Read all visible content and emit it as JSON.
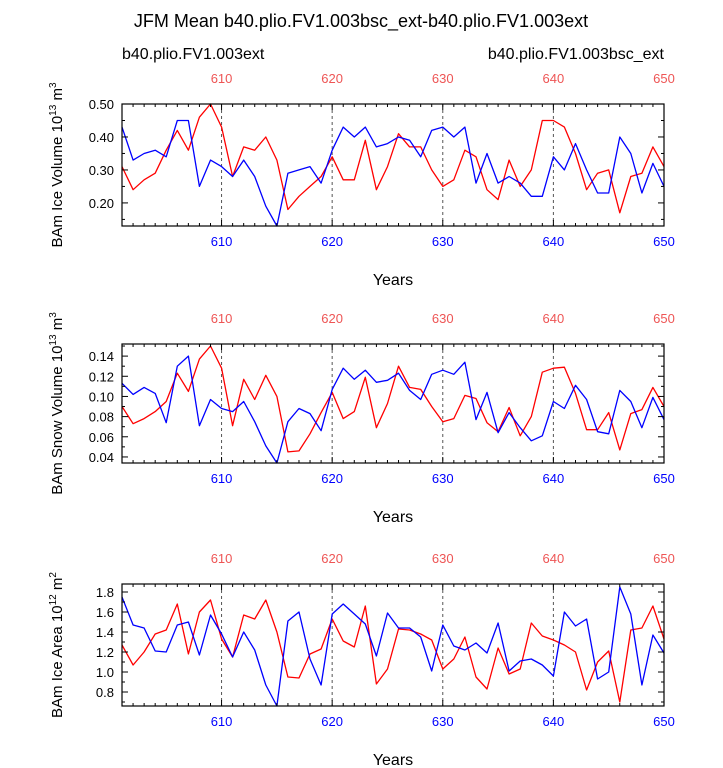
{
  "title": "JFM Mean b40.plio.FV1.003bsc_ext-b40.plio.FV1.003ext",
  "legend": {
    "red_label": "b40.plio.FV1.003ext",
    "blue_label": "b40.plio.FV1.003bsc_ext"
  },
  "colors": {
    "red": "#ff0000",
    "blue": "#0000ff",
    "top_tick": "#ee5555",
    "grid": "#555555"
  },
  "chart_data": [
    {
      "type": "line",
      "ylabel": "BAm Ice Volume 10",
      "ylabel_exp": "13",
      "ylabel_unit": " m",
      "ylabel_unit_exp": "3",
      "xlabel": "Years",
      "xlim": [
        601,
        650
      ],
      "ylim": [
        0.13,
        0.5
      ],
      "yticks": [
        0.2,
        0.3,
        0.4,
        0.5
      ],
      "ytick_labels": [
        "0.20",
        "0.30",
        "0.40",
        "0.50"
      ],
      "xticks": [
        610,
        620,
        630,
        640,
        650
      ],
      "xtick_labels": [
        "610",
        "620",
        "630",
        "640",
        "650"
      ],
      "grid_x": [
        610,
        620,
        630,
        640
      ],
      "x": [
        601,
        602,
        603,
        604,
        605,
        606,
        607,
        608,
        609,
        610,
        611,
        612,
        613,
        614,
        615,
        616,
        617,
        618,
        619,
        620,
        621,
        622,
        623,
        624,
        625,
        626,
        627,
        628,
        629,
        630,
        631,
        632,
        633,
        634,
        635,
        636,
        637,
        638,
        639,
        640,
        641,
        642,
        643,
        644,
        645,
        646,
        647,
        648,
        649,
        650
      ],
      "series": [
        {
          "name": "b40.plio.FV1.003ext",
          "color": "red",
          "values": [
            0.31,
            0.24,
            0.27,
            0.29,
            0.36,
            0.42,
            0.36,
            0.46,
            0.5,
            0.43,
            0.28,
            0.37,
            0.36,
            0.4,
            0.33,
            0.18,
            0.22,
            0.25,
            0.28,
            0.34,
            0.27,
            0.27,
            0.39,
            0.24,
            0.31,
            0.41,
            0.37,
            0.37,
            0.3,
            0.25,
            0.27,
            0.36,
            0.34,
            0.24,
            0.21,
            0.33,
            0.25,
            0.3,
            0.45,
            0.45,
            0.43,
            0.35,
            0.24,
            0.29,
            0.3,
            0.17,
            0.28,
            0.29,
            0.37,
            0.31
          ]
        },
        {
          "name": "b40.plio.FV1.003bsc_ext",
          "color": "blue",
          "values": [
            0.43,
            0.33,
            0.35,
            0.36,
            0.34,
            0.45,
            0.45,
            0.25,
            0.33,
            0.31,
            0.28,
            0.33,
            0.28,
            0.19,
            0.13,
            0.29,
            0.3,
            0.31,
            0.26,
            0.36,
            0.43,
            0.4,
            0.43,
            0.37,
            0.38,
            0.4,
            0.39,
            0.34,
            0.42,
            0.43,
            0.4,
            0.43,
            0.26,
            0.35,
            0.26,
            0.28,
            0.26,
            0.22,
            0.22,
            0.34,
            0.3,
            0.38,
            0.3,
            0.23,
            0.23,
            0.4,
            0.35,
            0.23,
            0.32,
            0.25
          ]
        }
      ]
    },
    {
      "type": "line",
      "ylabel": "BAm Snow Volume 10",
      "ylabel_exp": "13",
      "ylabel_unit": " m",
      "ylabel_unit_exp": "3",
      "xlabel": "Years",
      "xlim": [
        601,
        650
      ],
      "ylim": [
        0.034,
        0.152
      ],
      "yticks": [
        0.04,
        0.06,
        0.08,
        0.1,
        0.12,
        0.14
      ],
      "ytick_labels": [
        "0.04",
        "0.06",
        "0.08",
        "0.10",
        "0.12",
        "0.14"
      ],
      "xticks": [
        610,
        620,
        630,
        640,
        650
      ],
      "xtick_labels": [
        "610",
        "620",
        "630",
        "640",
        "650"
      ],
      "grid_x": [
        610,
        620,
        630,
        640
      ],
      "x": [
        601,
        602,
        603,
        604,
        605,
        606,
        607,
        608,
        609,
        610,
        611,
        612,
        613,
        614,
        615,
        616,
        617,
        618,
        619,
        620,
        621,
        622,
        623,
        624,
        625,
        626,
        627,
        628,
        629,
        630,
        631,
        632,
        633,
        634,
        635,
        636,
        637,
        638,
        639,
        640,
        641,
        642,
        643,
        644,
        645,
        646,
        647,
        648,
        649,
        650
      ],
      "series": [
        {
          "name": "b40.plio.FV1.003ext",
          "color": "red",
          "values": [
            0.09,
            0.073,
            0.078,
            0.085,
            0.095,
            0.123,
            0.105,
            0.137,
            0.15,
            0.128,
            0.071,
            0.117,
            0.097,
            0.121,
            0.1,
            0.045,
            0.046,
            0.063,
            0.084,
            0.104,
            0.078,
            0.085,
            0.119,
            0.069,
            0.093,
            0.13,
            0.109,
            0.107,
            0.09,
            0.075,
            0.078,
            0.101,
            0.098,
            0.074,
            0.065,
            0.089,
            0.061,
            0.08,
            0.124,
            0.128,
            0.129,
            0.103,
            0.067,
            0.067,
            0.084,
            0.047,
            0.083,
            0.087,
            0.109,
            0.09
          ]
        },
        {
          "name": "b40.plio.FV1.003bsc_ext",
          "color": "blue",
          "values": [
            0.113,
            0.102,
            0.109,
            0.103,
            0.074,
            0.13,
            0.14,
            0.071,
            0.097,
            0.088,
            0.085,
            0.095,
            0.075,
            0.051,
            0.034,
            0.075,
            0.088,
            0.083,
            0.066,
            0.107,
            0.128,
            0.117,
            0.126,
            0.114,
            0.116,
            0.123,
            0.106,
            0.097,
            0.122,
            0.126,
            0.122,
            0.134,
            0.077,
            0.104,
            0.064,
            0.084,
            0.069,
            0.056,
            0.061,
            0.095,
            0.088,
            0.111,
            0.097,
            0.065,
            0.063,
            0.106,
            0.095,
            0.069,
            0.099,
            0.077
          ]
        }
      ]
    },
    {
      "type": "line",
      "ylabel": "BAm Ice Area 10",
      "ylabel_exp": "12",
      "ylabel_unit": " m",
      "ylabel_unit_exp": "2",
      "xlabel": "Years",
      "xlim": [
        601,
        650
      ],
      "ylim": [
        0.66,
        1.88
      ],
      "yticks": [
        0.8,
        1.0,
        1.2,
        1.4,
        1.6,
        1.8
      ],
      "ytick_labels": [
        "0.8",
        "1.0",
        "1.2",
        "1.4",
        "1.6",
        "1.8"
      ],
      "xticks": [
        610,
        620,
        630,
        640,
        650
      ],
      "xtick_labels": [
        "610",
        "620",
        "630",
        "640",
        "650"
      ],
      "grid_x": [
        610,
        620,
        630,
        640
      ],
      "x": [
        601,
        602,
        603,
        604,
        605,
        606,
        607,
        608,
        609,
        610,
        611,
        612,
        613,
        614,
        615,
        616,
        617,
        618,
        619,
        620,
        621,
        622,
        623,
        624,
        625,
        626,
        627,
        628,
        629,
        630,
        631,
        632,
        633,
        634,
        635,
        636,
        637,
        638,
        639,
        640,
        641,
        642,
        643,
        644,
        645,
        646,
        647,
        648,
        649,
        650
      ],
      "series": [
        {
          "name": "b40.plio.FV1.003ext",
          "color": "red",
          "values": [
            1.27,
            1.07,
            1.2,
            1.38,
            1.42,
            1.68,
            1.18,
            1.6,
            1.72,
            1.33,
            1.15,
            1.57,
            1.53,
            1.72,
            1.4,
            0.95,
            0.94,
            1.18,
            1.23,
            1.53,
            1.31,
            1.25,
            1.66,
            0.88,
            1.03,
            1.43,
            1.42,
            1.38,
            1.32,
            1.03,
            1.13,
            1.35,
            0.95,
            0.83,
            1.24,
            0.98,
            1.03,
            1.49,
            1.36,
            1.32,
            1.27,
            1.2,
            0.82,
            1.1,
            1.21,
            0.7,
            1.42,
            1.44,
            1.66,
            1.33
          ]
        },
        {
          "name": "b40.plio.FV1.003bsc_ext",
          "color": "blue",
          "values": [
            1.75,
            1.47,
            1.44,
            1.21,
            1.2,
            1.47,
            1.5,
            1.17,
            1.57,
            1.38,
            1.15,
            1.4,
            1.22,
            0.87,
            0.66,
            1.51,
            1.6,
            1.13,
            0.87,
            1.58,
            1.68,
            1.58,
            1.48,
            1.16,
            1.59,
            1.44,
            1.44,
            1.35,
            1.01,
            1.47,
            1.26,
            1.22,
            1.29,
            1.19,
            1.49,
            1.01,
            1.11,
            1.13,
            1.07,
            0.96,
            1.6,
            1.46,
            1.53,
            0.93,
            1.0,
            1.85,
            1.58,
            0.87,
            1.37,
            1.19
          ]
        }
      ]
    }
  ]
}
